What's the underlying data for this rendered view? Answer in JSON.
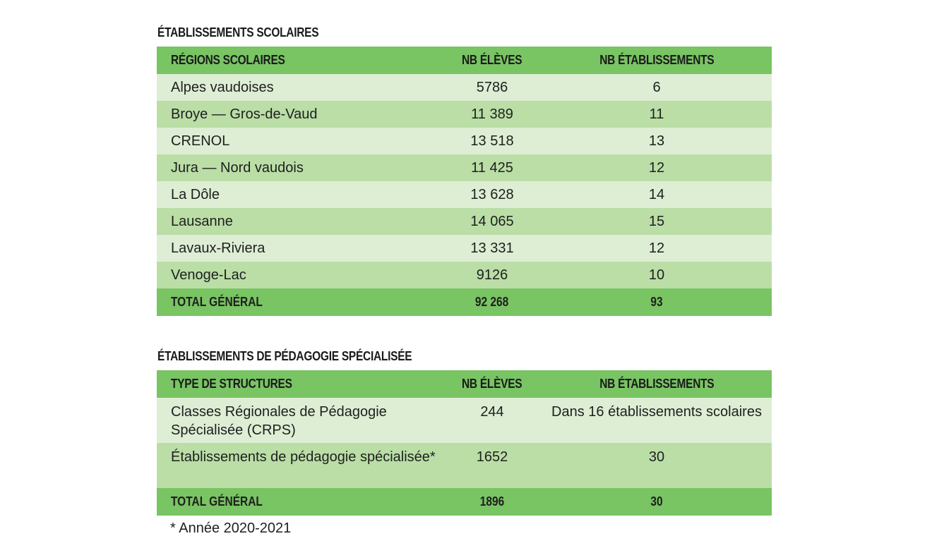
{
  "section1": {
    "title": "ÉTABLISSEMENTS SCOLAIRES",
    "headers": [
      "RÉGIONS SCOLAIRES",
      "NB ÉLÈVES",
      "NB ÉTABLISSEMENTS"
    ],
    "rows": [
      {
        "name": "Alpes vaudoises",
        "eleves": "5786",
        "etablissements": "6"
      },
      {
        "name": "Broye — Gros-de-Vaud",
        "eleves": "11 389",
        "etablissements": "11"
      },
      {
        "name": "CRENOL",
        "eleves": "13 518",
        "etablissements": "13"
      },
      {
        "name": "Jura — Nord vaudois",
        "eleves": "11 425",
        "etablissements": "12"
      },
      {
        "name": "La Dôle",
        "eleves": "13 628",
        "etablissements": "14"
      },
      {
        "name": "Lausanne",
        "eleves": "14 065",
        "etablissements": "15"
      },
      {
        "name": "Lavaux-Riviera",
        "eleves": "13 331",
        "etablissements": "12"
      },
      {
        "name": "Venoge-Lac",
        "eleves": "9126",
        "etablissements": "10"
      }
    ],
    "total": {
      "name": "TOTAL GÉNÉRAL",
      "eleves": "92 268",
      "etablissements": "93"
    }
  },
  "section2": {
    "title": "ÉTABLISSEMENTS DE PÉDAGOGIE SPÉCIALISÉE",
    "headers": [
      "TYPE DE STRUCTURES",
      "NB ÉLÈVES",
      "NB ÉTABLISSEMENTS"
    ],
    "rows": [
      {
        "name": "Classes Régionales de Pédagogie Spécialisée (CRPS)",
        "eleves": "244",
        "etablissements": "Dans 16 établissements scolaires"
      },
      {
        "name": "Établissements de pédagogie spécialisée*",
        "eleves": "1652",
        "etablissements": "30"
      }
    ],
    "total": {
      "name": "TOTAL GÉNÉRAL",
      "eleves": "1896",
      "etablissements": "30"
    }
  },
  "footnote": "* Année 2020-2021",
  "colors": {
    "header_green": "#79c463",
    "row_light": "#ddeed4",
    "row_dark": "#badea6"
  }
}
